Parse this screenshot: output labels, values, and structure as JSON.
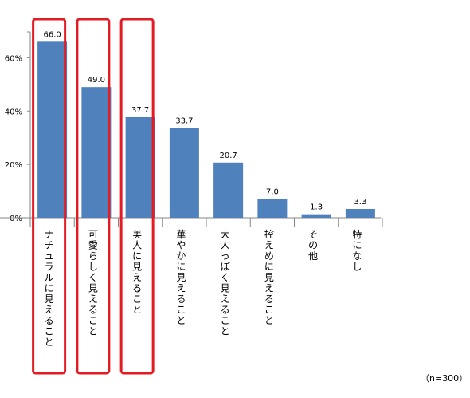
{
  "chart_data": {
    "type": "bar",
    "categories": [
      "ナチュラルに見えること",
      "可愛らしく見えること",
      "美人に見えること",
      "華やかに見えること",
      "大人っぽく見えること",
      "控えめに見えること",
      "その他",
      "特になし"
    ],
    "values": [
      66.0,
      49.0,
      37.7,
      33.7,
      20.7,
      7.0,
      1.3,
      3.3
    ],
    "value_labels": [
      "66.0",
      "49.0",
      "37.7",
      "33.7",
      "20.7",
      "7.0",
      "1.3",
      "3.3"
    ],
    "y_ticks": [
      0,
      20,
      40,
      60
    ],
    "y_tick_labels": [
      "0%",
      "20%",
      "40%",
      "60%"
    ],
    "ylim": [
      0,
      70
    ],
    "highlighted_categories": [
      0,
      1,
      2
    ],
    "grid": false,
    "note": "（n=300）",
    "colors": {
      "bar": "#4F81BD",
      "highlight_border": "#E31B23",
      "axis": "#868686"
    }
  }
}
